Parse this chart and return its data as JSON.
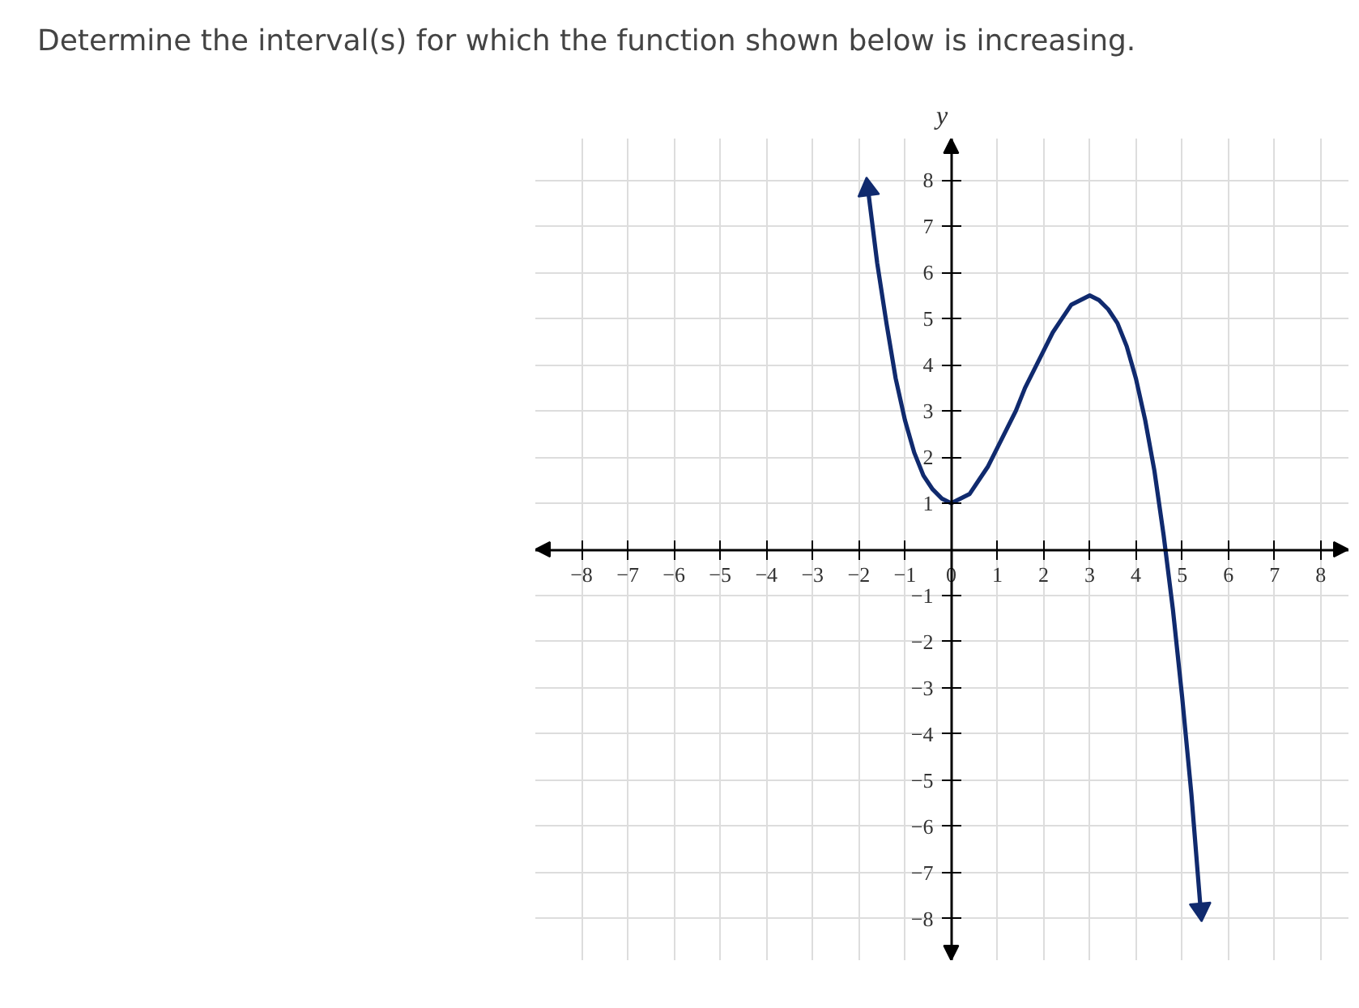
{
  "chart_data": {
    "type": "line",
    "title": "Determine the interval(s) for which the function shown below is increasing.",
    "ylabel": "y",
    "xlim": [
      -9,
      8.6
    ],
    "ylim": [
      -8.9,
      8.9
    ],
    "xticks": [
      {
        "value": -8,
        "label": "−8"
      },
      {
        "value": -7,
        "label": "−7"
      },
      {
        "value": -6,
        "label": "−6"
      },
      {
        "value": -5,
        "label": "−5"
      },
      {
        "value": -4,
        "label": "−4"
      },
      {
        "value": -3,
        "label": "−3"
      },
      {
        "value": -2,
        "label": "−2"
      },
      {
        "value": -1,
        "label": "−1"
      },
      0,
      1,
      2,
      3,
      4,
      5,
      6,
      7,
      8
    ],
    "yticks": [
      {
        "value": -8,
        "label": "−8"
      },
      {
        "value": -7,
        "label": "−7"
      },
      {
        "value": -6,
        "label": "−6"
      },
      {
        "value": -5,
        "label": "−5"
      },
      {
        "value": -4,
        "label": "−4"
      },
      {
        "value": -3,
        "label": "−3"
      },
      {
        "value": -2,
        "label": "−2"
      },
      {
        "value": -1,
        "label": "−1"
      },
      {
        "value": 0,
        "label": null
      },
      1,
      2,
      3,
      4,
      5,
      6,
      7,
      8
    ],
    "grid": true,
    "marker": "none",
    "line_style": "solid",
    "series": [
      {
        "color": "#102a6e",
        "x": [
          -1.8,
          -1.6,
          -1.4,
          -1.2,
          -1.0,
          -0.8,
          -0.6,
          -0.4,
          -0.2,
          0,
          0.2,
          0.4,
          0.6,
          0.8,
          1.0,
          1.2,
          1.4,
          1.6,
          1.8,
          2.0,
          2.2,
          2.4,
          2.6,
          2.8,
          3.0,
          3.2,
          3.4,
          3.6,
          3.8,
          4.0,
          4.2,
          4.4,
          4.6,
          4.8,
          5.0,
          5.2,
          5.4
        ],
        "values": [
          7.8,
          6.2,
          4.9,
          3.7,
          2.8,
          2.1,
          1.6,
          1.3,
          1.1,
          1.0,
          1.1,
          1.2,
          1.5,
          1.8,
          2.2,
          2.6,
          3.0,
          3.5,
          3.9,
          4.3,
          4.7,
          5.0,
          5.3,
          5.4,
          5.5,
          5.4,
          5.2,
          4.9,
          4.4,
          3.7,
          2.8,
          1.7,
          0.3,
          -1.3,
          -3.2,
          -5.3,
          -7.8
        ]
      }
    ]
  }
}
